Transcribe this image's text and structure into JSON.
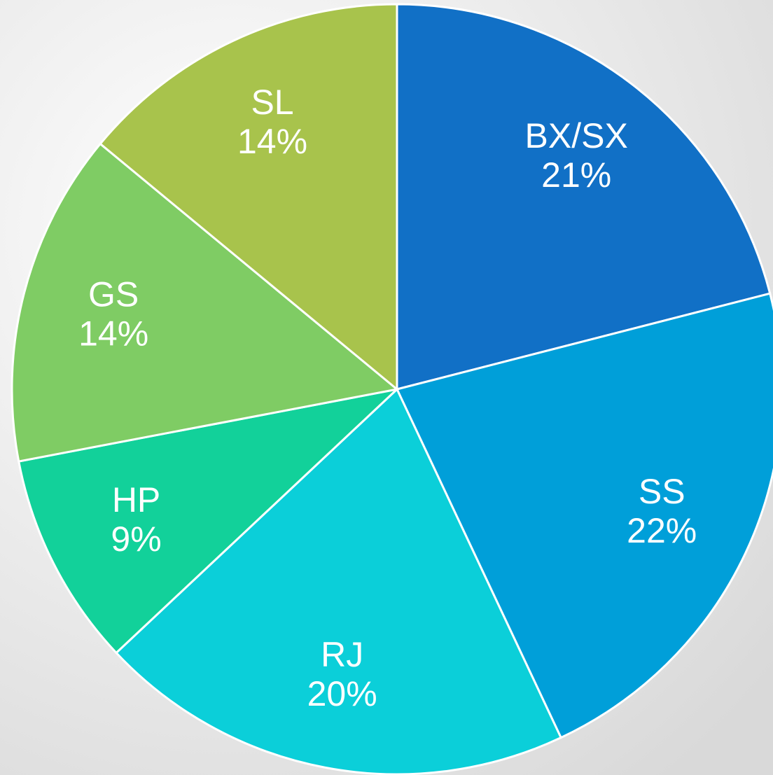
{
  "chart_data": {
    "type": "pie",
    "categories": [
      "BX/SX",
      "SS",
      "RJ",
      "HP",
      "GS",
      "SL"
    ],
    "values": [
      21,
      22,
      20,
      9,
      14,
      14
    ],
    "value_labels": [
      "21%",
      "22%",
      "20%",
      "9%",
      "14%",
      "14%"
    ],
    "colors": [
      "#1170c6",
      "#009fd9",
      "#0bcfd9",
      "#12d19a",
      "#7fcc64",
      "#a8c34c"
    ]
  }
}
